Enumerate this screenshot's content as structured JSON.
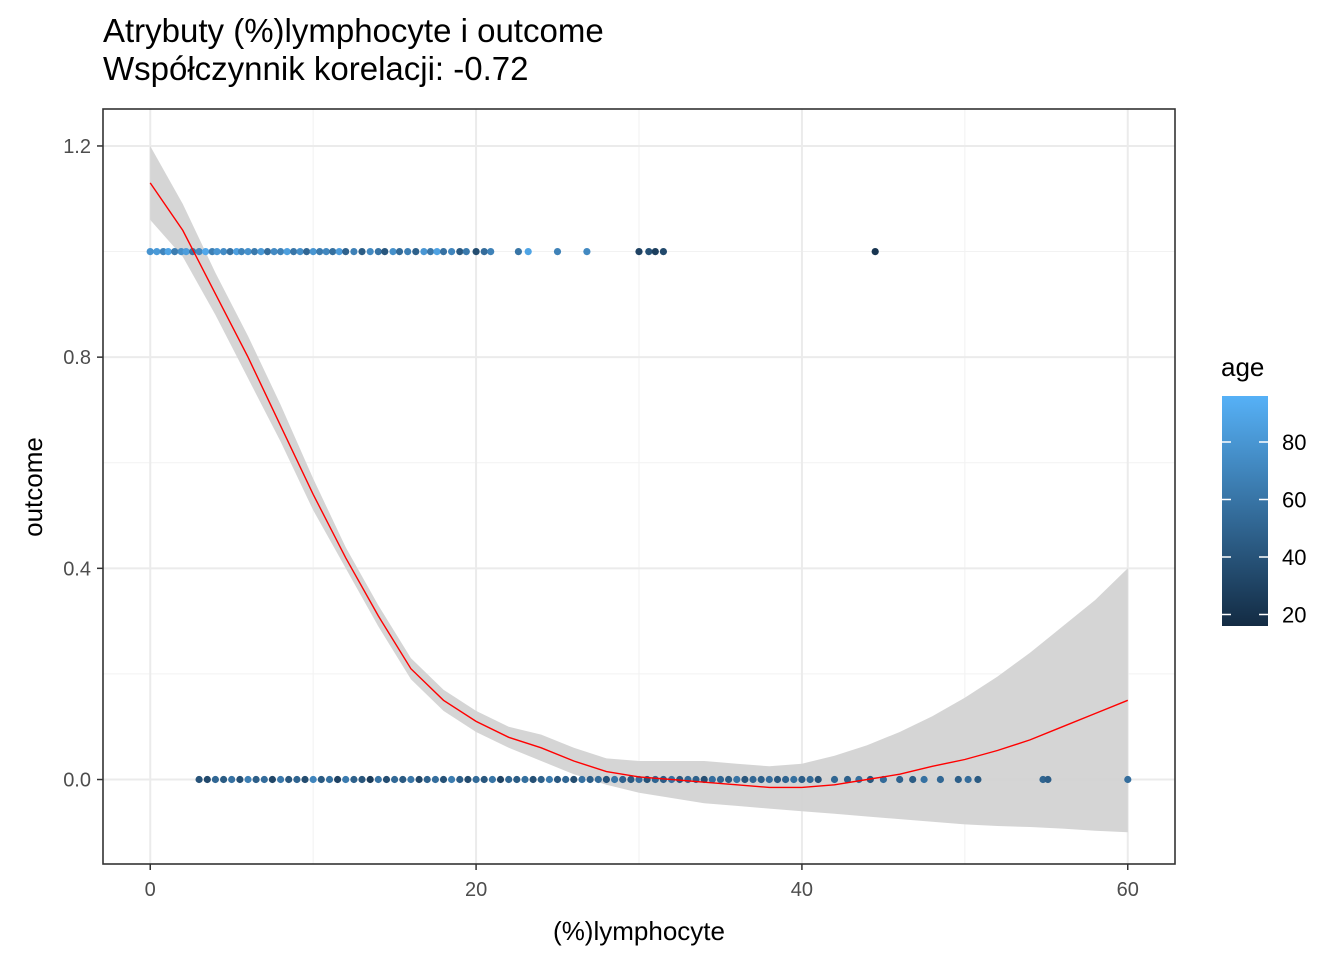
{
  "chart_data": {
    "type": "scatter",
    "title": "Atrybuty (%)lymphocyte i outcome",
    "subtitle": "Współczynnik korelacji: -0.72",
    "xlabel": "(%)lymphocyte",
    "ylabel": "outcome",
    "xlim": [
      -2.9,
      62.9
    ],
    "ylim": [
      -0.16,
      1.27
    ],
    "x_ticks": [
      0,
      20,
      40,
      60
    ],
    "x_tick_labels": [
      "0",
      "20",
      "40",
      "60"
    ],
    "y_ticks": [
      0.0,
      0.4,
      0.8,
      1.2
    ],
    "y_tick_labels": [
      "0.0",
      "0.4",
      "0.8",
      "1.2"
    ],
    "grid": true,
    "legend": {
      "title": "age",
      "placement": "right",
      "type": "colorbar",
      "breaks": [
        20,
        40,
        60,
        80
      ],
      "break_labels": [
        "20",
        "40",
        "60",
        "80"
      ],
      "range": [
        16,
        96
      ],
      "low_color": "#132B43",
      "high_color": "#56B1F7"
    },
    "series": [
      {
        "type": "points",
        "points": [
          {
            "x": 0.0,
            "y": 1,
            "age": 78
          },
          {
            "x": 0.4,
            "y": 1,
            "age": 82
          },
          {
            "x": 0.8,
            "y": 1,
            "age": 70
          },
          {
            "x": 1.1,
            "y": 1,
            "age": 88
          },
          {
            "x": 1.5,
            "y": 1,
            "age": 65
          },
          {
            "x": 1.9,
            "y": 1,
            "age": 76
          },
          {
            "x": 2.2,
            "y": 1,
            "age": 84
          },
          {
            "x": 2.6,
            "y": 1,
            "age": 60
          },
          {
            "x": 3.0,
            "y": 1,
            "age": 72
          },
          {
            "x": 3.4,
            "y": 1,
            "age": 90
          },
          {
            "x": 3.8,
            "y": 1,
            "age": 66
          },
          {
            "x": 4.1,
            "y": 1,
            "age": 80
          },
          {
            "x": 4.5,
            "y": 1,
            "age": 74
          },
          {
            "x": 4.9,
            "y": 1,
            "age": 58
          },
          {
            "x": 5.3,
            "y": 1,
            "age": 86
          },
          {
            "x": 5.6,
            "y": 1,
            "age": 69
          },
          {
            "x": 6.0,
            "y": 1,
            "age": 77
          },
          {
            "x": 6.4,
            "y": 1,
            "age": 63
          },
          {
            "x": 6.8,
            "y": 1,
            "age": 81
          },
          {
            "x": 7.2,
            "y": 1,
            "age": 55
          },
          {
            "x": 7.6,
            "y": 1,
            "age": 73
          },
          {
            "x": 8.0,
            "y": 1,
            "age": 68
          },
          {
            "x": 8.4,
            "y": 1,
            "age": 85
          },
          {
            "x": 8.8,
            "y": 1,
            "age": 61
          },
          {
            "x": 9.2,
            "y": 1,
            "age": 75
          },
          {
            "x": 9.6,
            "y": 1,
            "age": 52
          },
          {
            "x": 10.0,
            "y": 1,
            "age": 79
          },
          {
            "x": 10.4,
            "y": 1,
            "age": 64
          },
          {
            "x": 10.8,
            "y": 1,
            "age": 71
          },
          {
            "x": 11.2,
            "y": 1,
            "age": 57
          },
          {
            "x": 11.6,
            "y": 1,
            "age": 83
          },
          {
            "x": 12.0,
            "y": 1,
            "age": 49
          },
          {
            "x": 12.5,
            "y": 1,
            "age": 67
          },
          {
            "x": 13.0,
            "y": 1,
            "age": 45
          },
          {
            "x": 13.5,
            "y": 1,
            "age": 72
          },
          {
            "x": 14.0,
            "y": 1,
            "age": 59
          },
          {
            "x": 14.4,
            "y": 1,
            "age": 42
          },
          {
            "x": 14.9,
            "y": 1,
            "age": 76
          },
          {
            "x": 15.3,
            "y": 1,
            "age": 54
          },
          {
            "x": 15.8,
            "y": 1,
            "age": 66
          },
          {
            "x": 16.3,
            "y": 1,
            "age": 48
          },
          {
            "x": 16.8,
            "y": 1,
            "age": 80
          },
          {
            "x": 17.2,
            "y": 1,
            "age": 62
          },
          {
            "x": 17.6,
            "y": 1,
            "age": 87
          },
          {
            "x": 18.0,
            "y": 1,
            "age": 58
          },
          {
            "x": 18.5,
            "y": 1,
            "age": 70
          },
          {
            "x": 19.0,
            "y": 1,
            "age": 44
          },
          {
            "x": 19.4,
            "y": 1,
            "age": 63
          },
          {
            "x": 20.0,
            "y": 1,
            "age": 36
          },
          {
            "x": 20.5,
            "y": 1,
            "age": 55
          },
          {
            "x": 20.9,
            "y": 1,
            "age": 68
          },
          {
            "x": 22.6,
            "y": 1,
            "age": 60
          },
          {
            "x": 23.2,
            "y": 1,
            "age": 88
          },
          {
            "x": 25.0,
            "y": 1,
            "age": 68
          },
          {
            "x": 26.8,
            "y": 1,
            "age": 72
          },
          {
            "x": 30.0,
            "y": 1,
            "age": 30
          },
          {
            "x": 30.6,
            "y": 1,
            "age": 38
          },
          {
            "x": 31.0,
            "y": 1,
            "age": 28
          },
          {
            "x": 31.5,
            "y": 1,
            "age": 34
          },
          {
            "x": 44.5,
            "y": 1,
            "age": 22
          },
          {
            "x": 3.0,
            "y": 0,
            "age": 40
          },
          {
            "x": 3.5,
            "y": 0,
            "age": 34
          },
          {
            "x": 4.0,
            "y": 0,
            "age": 52
          },
          {
            "x": 4.5,
            "y": 0,
            "age": 45
          },
          {
            "x": 5.0,
            "y": 0,
            "age": 58
          },
          {
            "x": 5.5,
            "y": 0,
            "age": 38
          },
          {
            "x": 6.0,
            "y": 0,
            "age": 66
          },
          {
            "x": 6.5,
            "y": 0,
            "age": 47
          },
          {
            "x": 7.0,
            "y": 0,
            "age": 55
          },
          {
            "x": 7.5,
            "y": 0,
            "age": 32
          },
          {
            "x": 8.0,
            "y": 0,
            "age": 62
          },
          {
            "x": 8.5,
            "y": 0,
            "age": 42
          },
          {
            "x": 9.0,
            "y": 0,
            "age": 50
          },
          {
            "x": 9.5,
            "y": 0,
            "age": 36
          },
          {
            "x": 10.0,
            "y": 0,
            "age": 70
          },
          {
            "x": 10.5,
            "y": 0,
            "age": 44
          },
          {
            "x": 11.0,
            "y": 0,
            "age": 57
          },
          {
            "x": 11.5,
            "y": 0,
            "age": 30
          },
          {
            "x": 12.0,
            "y": 0,
            "age": 64
          },
          {
            "x": 12.5,
            "y": 0,
            "age": 48
          },
          {
            "x": 13.0,
            "y": 0,
            "age": 41
          },
          {
            "x": 13.5,
            "y": 0,
            "age": 26
          },
          {
            "x": 14.0,
            "y": 0,
            "age": 59
          },
          {
            "x": 14.5,
            "y": 0,
            "age": 37
          },
          {
            "x": 15.0,
            "y": 0,
            "age": 53
          },
          {
            "x": 15.5,
            "y": 0,
            "age": 44
          },
          {
            "x": 16.0,
            "y": 0,
            "age": 61
          },
          {
            "x": 16.5,
            "y": 0,
            "age": 33
          },
          {
            "x": 17.0,
            "y": 0,
            "age": 49
          },
          {
            "x": 17.5,
            "y": 0,
            "age": 56
          },
          {
            "x": 18.0,
            "y": 0,
            "age": 39
          },
          {
            "x": 18.5,
            "y": 0,
            "age": 65
          },
          {
            "x": 19.0,
            "y": 0,
            "age": 46
          },
          {
            "x": 19.5,
            "y": 0,
            "age": 35
          },
          {
            "x": 20.0,
            "y": 0,
            "age": 54
          },
          {
            "x": 20.5,
            "y": 0,
            "age": 42
          },
          {
            "x": 21.0,
            "y": 0,
            "age": 60
          },
          {
            "x": 21.5,
            "y": 0,
            "age": 31
          },
          {
            "x": 22.0,
            "y": 0,
            "age": 51
          },
          {
            "x": 22.5,
            "y": 0,
            "age": 45
          },
          {
            "x": 23.0,
            "y": 0,
            "age": 57
          },
          {
            "x": 23.5,
            "y": 0,
            "age": 38
          },
          {
            "x": 24.0,
            "y": 0,
            "age": 48
          },
          {
            "x": 24.5,
            "y": 0,
            "age": 63
          },
          {
            "x": 25.0,
            "y": 0,
            "age": 43
          },
          {
            "x": 25.5,
            "y": 0,
            "age": 52
          },
          {
            "x": 26.0,
            "y": 0,
            "age": 36
          },
          {
            "x": 26.5,
            "y": 0,
            "age": 58
          },
          {
            "x": 27.0,
            "y": 0,
            "age": 47
          },
          {
            "x": 27.5,
            "y": 0,
            "age": 54
          },
          {
            "x": 28.0,
            "y": 0,
            "age": 40
          },
          {
            "x": 28.5,
            "y": 0,
            "age": 60
          },
          {
            "x": 29.0,
            "y": 0,
            "age": 49
          },
          {
            "x": 29.5,
            "y": 0,
            "age": 44
          },
          {
            "x": 30.0,
            "y": 0,
            "age": 55
          },
          {
            "x": 30.5,
            "y": 0,
            "age": 39
          },
          {
            "x": 31.0,
            "y": 0,
            "age": 51
          },
          {
            "x": 31.5,
            "y": 0,
            "age": 46
          },
          {
            "x": 32.0,
            "y": 0,
            "age": 58
          },
          {
            "x": 32.5,
            "y": 0,
            "age": 42
          },
          {
            "x": 33.0,
            "y": 0,
            "age": 53
          },
          {
            "x": 33.5,
            "y": 0,
            "age": 48
          },
          {
            "x": 34.0,
            "y": 0,
            "age": 37
          },
          {
            "x": 34.5,
            "y": 0,
            "age": 56
          },
          {
            "x": 35.0,
            "y": 0,
            "age": 50
          },
          {
            "x": 35.5,
            "y": 0,
            "age": 45
          },
          {
            "x": 36.0,
            "y": 0,
            "age": 59
          },
          {
            "x": 36.5,
            "y": 0,
            "age": 41
          },
          {
            "x": 37.0,
            "y": 0,
            "age": 52
          },
          {
            "x": 37.5,
            "y": 0,
            "age": 47
          },
          {
            "x": 38.0,
            "y": 0,
            "age": 55
          },
          {
            "x": 38.5,
            "y": 0,
            "age": 43
          },
          {
            "x": 39.0,
            "y": 0,
            "age": 50
          },
          {
            "x": 39.5,
            "y": 0,
            "age": 57
          },
          {
            "x": 40.0,
            "y": 0,
            "age": 46
          },
          {
            "x": 40.5,
            "y": 0,
            "age": 53
          },
          {
            "x": 41.0,
            "y": 0,
            "age": 40
          },
          {
            "x": 42.0,
            "y": 0,
            "age": 51
          },
          {
            "x": 42.8,
            "y": 0,
            "age": 48
          },
          {
            "x": 43.5,
            "y": 0,
            "age": 56
          },
          {
            "x": 44.2,
            "y": 0,
            "age": 42
          },
          {
            "x": 45.0,
            "y": 0,
            "age": 54
          },
          {
            "x": 46.0,
            "y": 0,
            "age": 49
          },
          {
            "x": 46.8,
            "y": 0,
            "age": 45
          },
          {
            "x": 47.5,
            "y": 0,
            "age": 58
          },
          {
            "x": 48.5,
            "y": 0,
            "age": 52
          },
          {
            "x": 49.6,
            "y": 0,
            "age": 47
          },
          {
            "x": 50.2,
            "y": 0,
            "age": 55
          },
          {
            "x": 50.8,
            "y": 0,
            "age": 44
          },
          {
            "x": 54.8,
            "y": 0,
            "age": 50
          },
          {
            "x": 55.1,
            "y": 0,
            "age": 46
          },
          {
            "x": 60.0,
            "y": 0,
            "age": 56
          }
        ]
      },
      {
        "type": "smooth",
        "color": "#ff0000",
        "band_color": "#d3d3d3",
        "x": [
          0,
          2,
          4,
          6,
          8,
          10,
          12,
          14,
          16,
          18,
          20,
          22,
          24,
          26,
          28,
          30,
          32,
          34,
          36,
          38,
          40,
          42,
          44,
          46,
          48,
          50,
          52,
          54,
          56,
          58,
          60
        ],
        "y": [
          1.13,
          1.04,
          0.92,
          0.8,
          0.67,
          0.54,
          0.42,
          0.31,
          0.21,
          0.15,
          0.11,
          0.08,
          0.06,
          0.035,
          0.015,
          0.005,
          0.0,
          -0.005,
          -0.01,
          -0.015,
          -0.015,
          -0.01,
          0.0,
          0.01,
          0.025,
          0.038,
          0.055,
          0.075,
          0.1,
          0.125,
          0.15
        ],
        "lower": [
          1.06,
          0.99,
          0.88,
          0.76,
          0.64,
          0.51,
          0.4,
          0.29,
          0.19,
          0.13,
          0.09,
          0.06,
          0.035,
          0.01,
          -0.01,
          -0.025,
          -0.035,
          -0.045,
          -0.05,
          -0.055,
          -0.06,
          -0.065,
          -0.07,
          -0.075,
          -0.08,
          -0.085,
          -0.088,
          -0.09,
          -0.093,
          -0.097,
          -0.1
        ],
        "upper": [
          1.2,
          1.09,
          0.96,
          0.84,
          0.71,
          0.57,
          0.44,
          0.33,
          0.23,
          0.17,
          0.13,
          0.1,
          0.085,
          0.06,
          0.04,
          0.035,
          0.035,
          0.035,
          0.03,
          0.025,
          0.03,
          0.045,
          0.065,
          0.09,
          0.12,
          0.155,
          0.195,
          0.24,
          0.29,
          0.34,
          0.4
        ]
      }
    ]
  }
}
